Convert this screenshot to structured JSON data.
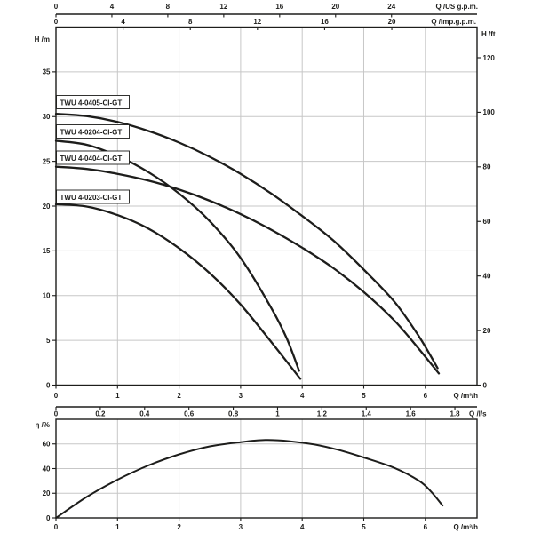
{
  "colors": {
    "curve": "#1d1d1b",
    "grid": "#c7c7c7",
    "text": "#1d1d1b",
    "plot_background": "#ffffff",
    "page_background": "#ffffff"
  },
  "chart_data": [
    {
      "id": "head-flow",
      "type": "line",
      "title": "",
      "x_range_m3h": [
        0,
        6.84
      ],
      "x_axes": [
        {
          "id": "us_gpm",
          "label": "Q /US g.p.m.",
          "ticks": [
            0,
            4,
            8,
            12,
            16,
            20,
            24
          ],
          "unit_to_m3h": 0.22712,
          "position": "top-outer"
        },
        {
          "id": "imp_gpm",
          "label": "Q /Imp.g.p.m.",
          "ticks": [
            0,
            4,
            8,
            12,
            16,
            20
          ],
          "unit_to_m3h": 0.27276,
          "position": "top"
        },
        {
          "id": "m3h",
          "label": "Q /m³/h",
          "ticks": [
            0,
            1,
            2,
            3,
            4,
            5,
            6
          ],
          "unit_to_m3h": 1,
          "position": "bottom"
        },
        {
          "id": "ls",
          "label": "Q /l/s",
          "ticks": [
            0,
            0.2,
            0.4,
            0.6,
            0.8,
            1,
            1.2,
            1.4,
            1.6,
            1.8
          ],
          "unit_to_m3h": 3.6,
          "position": "bottom-outer"
        }
      ],
      "y_axes": [
        {
          "id": "h_m",
          "label": "H /m",
          "ticks": [
            0,
            5,
            10,
            15,
            20,
            25,
            30,
            35
          ],
          "max": 40,
          "side": "left",
          "unit_to_m": 1
        },
        {
          "id": "h_ft",
          "label": "H /ft",
          "ticks": [
            0,
            20,
            40,
            60,
            80,
            100,
            120
          ],
          "side": "right",
          "unit_to_m": 0.3048
        }
      ],
      "series": [
        {
          "name": "TWU 4-0405-CI-GT",
          "points": [
            [
              0,
              30.3
            ],
            [
              0.5,
              30.05
            ],
            [
              1,
              29.4
            ],
            [
              1.5,
              28.4
            ],
            [
              2,
              27.1
            ],
            [
              2.5,
              25.5
            ],
            [
              3,
              23.6
            ],
            [
              3.5,
              21.4
            ],
            [
              4,
              18.9
            ],
            [
              4.5,
              16.2
            ],
            [
              5,
              12.9
            ],
            [
              5.5,
              9.3
            ],
            [
              5.9,
              5.4
            ],
            [
              6.2,
              1.9
            ]
          ]
        },
        {
          "name": "TWU 4-0204-CI-GT",
          "points": [
            [
              0,
              27.3
            ],
            [
              0.5,
              26.85
            ],
            [
              1,
              25.6
            ],
            [
              1.5,
              23.8
            ],
            [
              2,
              21.4
            ],
            [
              2.5,
              18.3
            ],
            [
              3,
              14.2
            ],
            [
              3.5,
              8.6
            ],
            [
              3.75,
              5.2
            ],
            [
              3.95,
              1.6
            ]
          ]
        },
        {
          "name": "TWU 4-0404-CI-GT",
          "points": [
            [
              0,
              24.4
            ],
            [
              0.5,
              24.15
            ],
            [
              1,
              23.6
            ],
            [
              1.5,
              22.85
            ],
            [
              2,
              21.85
            ],
            [
              2.5,
              20.6
            ],
            [
              3,
              19.1
            ],
            [
              3.5,
              17.35
            ],
            [
              4,
              15.35
            ],
            [
              4.5,
              13.1
            ],
            [
              5,
              10.4
            ],
            [
              5.5,
              7.2
            ],
            [
              5.9,
              4.0
            ],
            [
              6.22,
              1.3
            ]
          ]
        },
        {
          "name": "TWU 4-0203-CI-GT",
          "points": [
            [
              0,
              20.2
            ],
            [
              0.5,
              19.95
            ],
            [
              1,
              19.0
            ],
            [
              1.5,
              17.5
            ],
            [
              2,
              15.3
            ],
            [
              2.5,
              12.5
            ],
            [
              3,
              9.0
            ],
            [
              3.5,
              4.8
            ],
            [
              3.97,
              0.7
            ]
          ]
        }
      ]
    },
    {
      "id": "efficiency",
      "type": "line",
      "title": "",
      "y_axis": {
        "label": "η /%",
        "ticks": [
          0,
          20,
          40,
          60
        ],
        "max": 80
      },
      "x_axis": {
        "label": "Q /m³/h",
        "ticks": [
          0,
          1,
          2,
          3,
          4,
          5,
          6
        ]
      },
      "series": [
        {
          "name": "efficiency",
          "points": [
            [
              0,
              0
            ],
            [
              0.5,
              17
            ],
            [
              1,
              31
            ],
            [
              1.5,
              42.5
            ],
            [
              2,
              51.5
            ],
            [
              2.5,
              58
            ],
            [
              3,
              61.5
            ],
            [
              3.4,
              63.2
            ],
            [
              3.8,
              62.2
            ],
            [
              4.2,
              59.5
            ],
            [
              4.6,
              55
            ],
            [
              5,
              49
            ],
            [
              5.5,
              40.5
            ],
            [
              5.9,
              30
            ],
            [
              6.1,
              21
            ],
            [
              6.28,
              10
            ]
          ]
        }
      ]
    }
  ]
}
